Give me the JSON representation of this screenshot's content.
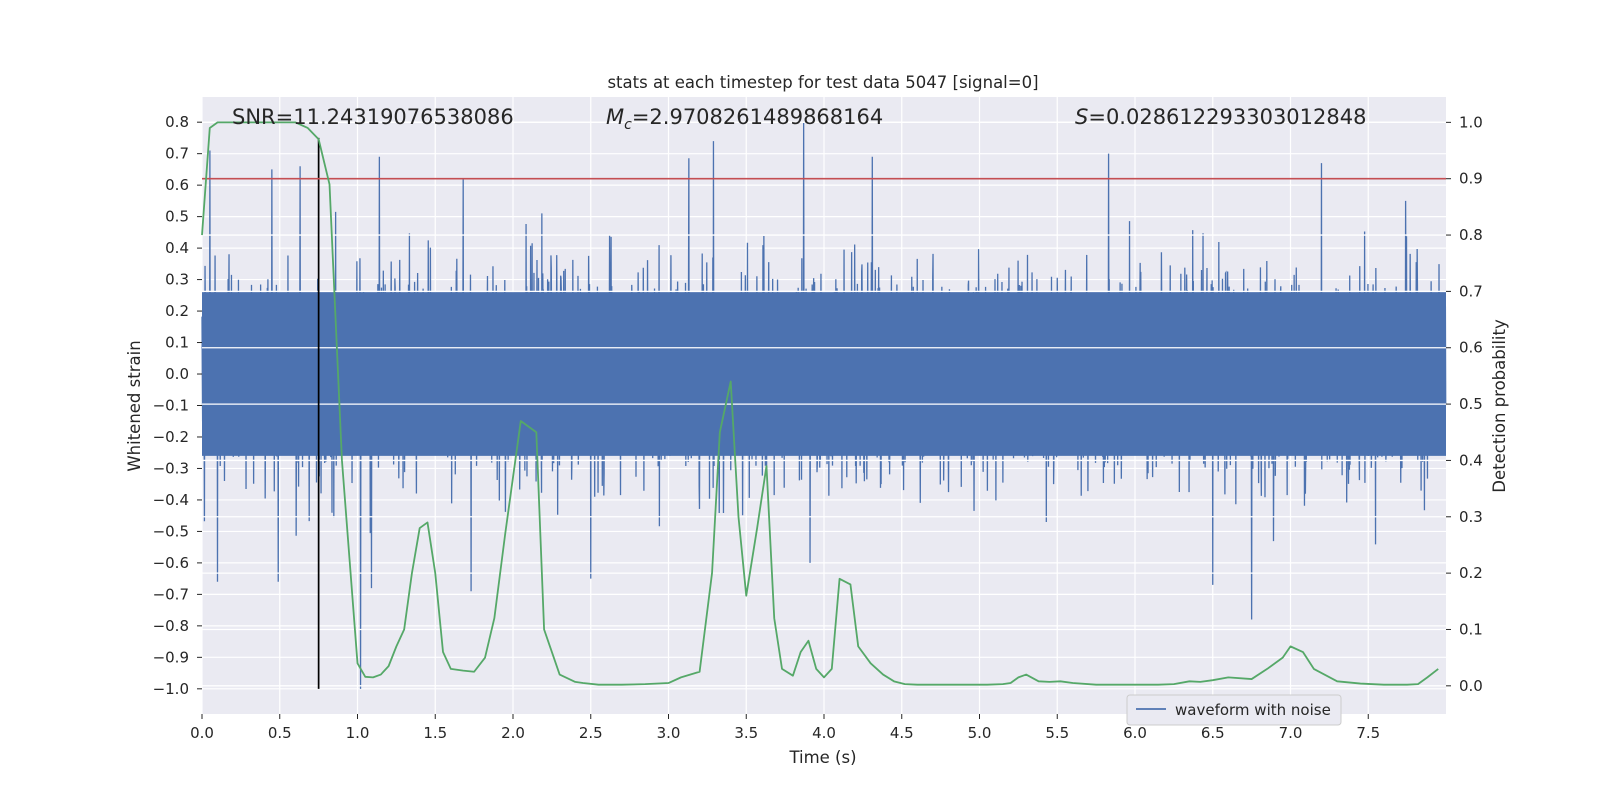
{
  "chart_data": {
    "type": "line",
    "title": "stats at each timestep for test data 5047 [signal=0]",
    "xlabel": "Time (s)",
    "ylabel_left": "Whitened strain",
    "ylabel_right": "Detection probability",
    "xlim": [
      0,
      8
    ],
    "ylim_left": [
      -1.08,
      0.88
    ],
    "ylim_right": [
      -0.05,
      1.045
    ],
    "x_ticks": [
      "0.0",
      "0.5",
      "1.0",
      "1.5",
      "2.0",
      "2.5",
      "3.0",
      "3.5",
      "4.0",
      "4.5",
      "5.0",
      "5.5",
      "6.0",
      "6.5",
      "7.0",
      "7.5"
    ],
    "y_left_ticks": [
      "0.8",
      "0.7",
      "0.6",
      "0.5",
      "0.4",
      "0.3",
      "0.2",
      "0.1",
      "0.0",
      "−0.1",
      "−0.2",
      "−0.3",
      "−0.4",
      "−0.5",
      "−0.6",
      "−0.7",
      "−0.8",
      "−0.9",
      "−1.0"
    ],
    "y_right_ticks": [
      "1.0",
      "0.9",
      "0.8",
      "0.7",
      "0.6",
      "0.5",
      "0.4",
      "0.3",
      "0.2",
      "0.1",
      "0.0"
    ],
    "grid": true,
    "legend": {
      "position": "lower-right",
      "entries": [
        "waveform with noise"
      ]
    },
    "annotations": {
      "snr": "SNR=11.24319076538086",
      "mc_symbol": "M",
      "mc_sub": "c",
      "mc_value": "=2.9708261489868164",
      "s_symbol": "S",
      "s_value": "=0.028612293303012848"
    },
    "threshold": {
      "axis": "right",
      "value": 0.9,
      "color": "#c44e52"
    },
    "marker_line": {
      "x": 0.75,
      "y_from": -1.0,
      "y_to": 0.75,
      "color": "#000000"
    },
    "waveform": {
      "name": "waveform with noise",
      "color": "#4c72b0",
      "samples": 4096,
      "core_envelope": 0.26,
      "peaks": [
        {
          "x": 0.05,
          "y": 0.71
        },
        {
          "x": 0.45,
          "y": 0.65
        },
        {
          "x": 0.63,
          "y": 0.66
        },
        {
          "x": 1.14,
          "y": 0.69
        },
        {
          "x": 1.68,
          "y": 0.62
        },
        {
          "x": 3.29,
          "y": 0.74
        },
        {
          "x": 3.87,
          "y": 0.8
        },
        {
          "x": 4.31,
          "y": 0.69
        },
        {
          "x": 5.83,
          "y": 0.7
        },
        {
          "x": 7.2,
          "y": 0.67
        },
        {
          "x": 7.74,
          "y": 0.55
        },
        {
          "x": 0.1,
          "y": -0.66
        },
        {
          "x": 0.49,
          "y": -0.66
        },
        {
          "x": 1.02,
          "y": -1.0
        },
        {
          "x": 1.09,
          "y": -0.68
        },
        {
          "x": 1.73,
          "y": -0.69
        },
        {
          "x": 2.5,
          "y": -0.65
        },
        {
          "x": 3.91,
          "y": -0.6
        },
        {
          "x": 6.5,
          "y": -0.67
        },
        {
          "x": 6.75,
          "y": -0.78
        }
      ]
    },
    "probability": {
      "color": "#55a868",
      "x": [
        0.0,
        0.05,
        0.1,
        0.2,
        0.3,
        0.4,
        0.5,
        0.6,
        0.68,
        0.75,
        0.82,
        0.9,
        1.0,
        1.05,
        1.1,
        1.15,
        1.2,
        1.25,
        1.3,
        1.35,
        1.4,
        1.45,
        1.5,
        1.55,
        1.6,
        1.68,
        1.75,
        1.82,
        1.88,
        1.95,
        2.05,
        2.15,
        2.2,
        2.3,
        2.4,
        2.45,
        2.55,
        2.7,
        2.85,
        3.0,
        3.08,
        3.2,
        3.28,
        3.33,
        3.4,
        3.45,
        3.5,
        3.57,
        3.63,
        3.68,
        3.73,
        3.8,
        3.85,
        3.9,
        3.95,
        4.0,
        4.05,
        4.1,
        4.17,
        4.22,
        4.3,
        4.38,
        4.45,
        4.52,
        4.6,
        4.75,
        4.9,
        5.05,
        5.15,
        5.2,
        5.25,
        5.3,
        5.38,
        5.45,
        5.52,
        5.6,
        5.75,
        5.9,
        6.0,
        6.15,
        6.25,
        6.35,
        6.42,
        6.5,
        6.6,
        6.75,
        6.85,
        6.95,
        7.0,
        7.08,
        7.15,
        7.3,
        7.45,
        7.6,
        7.75,
        7.82,
        7.88,
        7.95
      ],
      "y": [
        0.8,
        0.99,
        1.0,
        1.0,
        1.0,
        1.0,
        1.0,
        1.0,
        0.99,
        0.97,
        0.89,
        0.4,
        0.04,
        0.016,
        0.015,
        0.02,
        0.035,
        0.07,
        0.1,
        0.2,
        0.28,
        0.29,
        0.2,
        0.06,
        0.03,
        0.027,
        0.025,
        0.05,
        0.12,
        0.27,
        0.47,
        0.45,
        0.1,
        0.02,
        0.007,
        0.005,
        0.002,
        0.002,
        0.003,
        0.005,
        0.015,
        0.025,
        0.2,
        0.45,
        0.54,
        0.3,
        0.16,
        0.28,
        0.39,
        0.12,
        0.03,
        0.018,
        0.06,
        0.08,
        0.03,
        0.015,
        0.03,
        0.19,
        0.18,
        0.07,
        0.04,
        0.02,
        0.008,
        0.003,
        0.002,
        0.002,
        0.002,
        0.002,
        0.003,
        0.005,
        0.015,
        0.02,
        0.008,
        0.007,
        0.008,
        0.005,
        0.002,
        0.002,
        0.002,
        0.002,
        0.003,
        0.008,
        0.007,
        0.01,
        0.015,
        0.012,
        0.03,
        0.05,
        0.07,
        0.06,
        0.03,
        0.008,
        0.004,
        0.002,
        0.002,
        0.003,
        0.015,
        0.03
      ]
    }
  }
}
